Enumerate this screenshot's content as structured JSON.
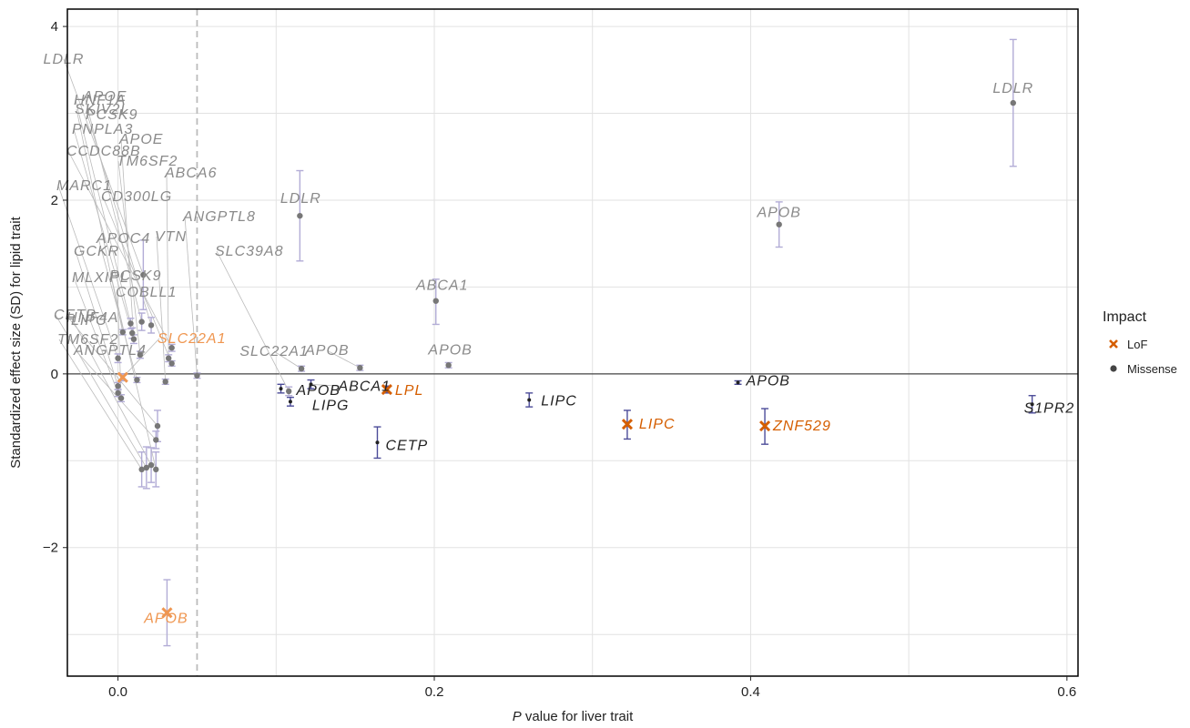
{
  "chart_data": {
    "type": "scatter",
    "xlabel_italic": "P",
    "xlabel_rest": " value for liver trait",
    "ylabel": "Standardized effect size (SD) for lipid trait",
    "xlim": [
      -0.032,
      0.607
    ],
    "ylim": [
      -3.48,
      4.2
    ],
    "x_ticks": [
      0.0,
      0.2,
      0.4,
      0.6
    ],
    "x_tick_labels": [
      "0.0",
      "0.2",
      "0.4",
      "0.6"
    ],
    "y_ticks": [
      -2,
      0,
      2,
      4
    ],
    "y_tick_labels": [
      "−2",
      "0",
      "2",
      "4"
    ],
    "threshold_x": 0.05,
    "zero_line_y": 0,
    "legend": {
      "title": "Impact",
      "position": "right",
      "entries": [
        {
          "label": "LoF",
          "marker": "x",
          "color": "#d55e00"
        },
        {
          "label": "Missense",
          "marker": "circle",
          "color": "#444444"
        }
      ]
    },
    "colors": {
      "lof_dark": "#d55e00",
      "lof_light": "#ef9650",
      "missense_dark": "#222222",
      "missense_light": "#8a8a8a",
      "errorbar_dark": "#4c4c99",
      "errorbar_light": "#b2acd6",
      "leader": "#bbbbbb",
      "grid": "#e2e2e2",
      "threshold": "#bbbbbb"
    },
    "points": [
      {
        "gene": "LDLR",
        "x": 0.566,
        "y": 3.12,
        "lo": 2.39,
        "hi": 3.85,
        "impact": "Missense",
        "shade": "light"
      },
      {
        "gene": "APOB",
        "x": 0.418,
        "y": 1.72,
        "lo": 1.46,
        "hi": 1.98,
        "impact": "Missense",
        "shade": "light"
      },
      {
        "gene": "LDLR",
        "x": 0.115,
        "y": 1.82,
        "lo": 1.3,
        "hi": 2.34,
        "impact": "Missense",
        "shade": "light"
      },
      {
        "gene": "ABCA1",
        "x": 0.201,
        "y": 0.84,
        "lo": 0.57,
        "hi": 1.09,
        "impact": "Missense",
        "shade": "light"
      },
      {
        "gene": "APOB",
        "x": 0.209,
        "y": 0.1,
        "lo": 0.07,
        "hi": 0.13,
        "impact": "Missense",
        "shade": "light"
      },
      {
        "gene": "APOB",
        "x": 0.153,
        "y": 0.07,
        "lo": 0.04,
        "hi": 0.1,
        "impact": "Missense",
        "shade": "light"
      },
      {
        "gene": "SLC22A1",
        "x": 0.116,
        "y": 0.06,
        "lo": 0.03,
        "hi": 0.09,
        "impact": "Missense",
        "shade": "light"
      },
      {
        "gene": "LDLR",
        "x": 0.016,
        "y": 1.14,
        "lo": 0.74,
        "hi": 1.54,
        "impact": "Missense",
        "shade": "light"
      },
      {
        "gene": "HNF1A",
        "x": 0.008,
        "y": 0.58,
        "lo": 0.52,
        "hi": 0.64,
        "impact": "Missense",
        "shade": "light"
      },
      {
        "gene": "APOE",
        "x": 0.015,
        "y": 0.6,
        "lo": 0.5,
        "hi": 0.7,
        "impact": "Missense",
        "shade": "light"
      },
      {
        "gene": "SKIV2L",
        "x": 0.003,
        "y": 0.48,
        "lo": 0.45,
        "hi": 0.51,
        "impact": "Missense",
        "shade": "light"
      },
      {
        "gene": "PCSK9",
        "x": 0.021,
        "y": 0.56,
        "lo": 0.47,
        "hi": 0.65,
        "impact": "Missense",
        "shade": "light"
      },
      {
        "gene": "PNPLA3",
        "x": 0.009,
        "y": 0.47,
        "lo": 0.41,
        "hi": 0.53,
        "impact": "Missense",
        "shade": "light"
      },
      {
        "gene": "APOE",
        "x": 0.01,
        "y": 0.4,
        "lo": 0.35,
        "hi": 0.45,
        "impact": "Missense",
        "shade": "light"
      },
      {
        "gene": "CCDC88B",
        "x": 0.034,
        "y": 0.3,
        "lo": 0.26,
        "hi": 0.34,
        "impact": "Missense",
        "shade": "light"
      },
      {
        "gene": "TM6SF2",
        "x": 0.014,
        "y": 0.22,
        "lo": 0.18,
        "hi": 0.26,
        "impact": "Missense",
        "shade": "light"
      },
      {
        "gene": "ABCA6",
        "x": 0.032,
        "y": 0.18,
        "lo": 0.14,
        "hi": 0.22,
        "impact": "Missense",
        "shade": "light"
      },
      {
        "gene": "MARC1",
        "x": 0.0,
        "y": 0.18,
        "lo": 0.13,
        "hi": 0.23,
        "impact": "Missense",
        "shade": "light"
      },
      {
        "gene": "CD300LG",
        "x": 0.034,
        "y": 0.12,
        "lo": 0.09,
        "hi": 0.15,
        "impact": "Missense",
        "shade": "light"
      },
      {
        "gene": "ANGPTL8",
        "x": 0.05,
        "y": -0.02,
        "lo": -0.05,
        "hi": 0.01,
        "impact": "Missense",
        "shade": "light"
      },
      {
        "gene": "APOC4",
        "x": 0.012,
        "y": -0.07,
        "lo": -0.1,
        "hi": -0.04,
        "impact": "Missense",
        "shade": "light"
      },
      {
        "gene": "VTN",
        "x": 0.03,
        "y": -0.09,
        "lo": -0.12,
        "hi": -0.06,
        "impact": "Missense",
        "shade": "light"
      },
      {
        "gene": "SLC39A8",
        "x": 0.108,
        "y": -0.2,
        "lo": -0.25,
        "hi": -0.15,
        "impact": "Missense",
        "shade": "light"
      },
      {
        "gene": "GCKR",
        "x": 0.0,
        "y": -0.14,
        "lo": -0.18,
        "hi": -0.1,
        "impact": "Missense",
        "shade": "light"
      },
      {
        "gene": "MLXIPL",
        "x": 0.0,
        "y": -0.22,
        "lo": -0.26,
        "hi": -0.18,
        "impact": "Missense",
        "shade": "light"
      },
      {
        "gene": "COBLL1",
        "x": 0.002,
        "y": -0.28,
        "lo": -0.32,
        "hi": -0.24,
        "impact": "Missense",
        "shade": "light"
      },
      {
        "gene": "HNF4A",
        "x": 0.025,
        "y": -0.6,
        "lo": -0.78,
        "hi": -0.42,
        "impact": "Missense",
        "shade": "light"
      },
      {
        "gene": "ANGPTL4",
        "x": 0.024,
        "y": -0.76,
        "lo": -0.86,
        "hi": -0.66,
        "impact": "Missense",
        "shade": "light"
      },
      {
        "gene": "TM6SF2",
        "x": 0.015,
        "y": -1.1,
        "lo": -1.3,
        "hi": -0.9,
        "impact": "Missense",
        "shade": "light"
      },
      {
        "gene": "LIPC",
        "x": 0.021,
        "y": -1.05,
        "lo": -1.25,
        "hi": -0.85,
        "impact": "Missense",
        "shade": "light"
      },
      {
        "gene": "CETP",
        "x": 0.018,
        "y": -1.08,
        "lo": -1.32,
        "hi": -0.84,
        "impact": "Missense",
        "shade": "light"
      },
      {
        "gene": "PCSK9",
        "x": 0.024,
        "y": -1.1,
        "lo": -1.3,
        "hi": -0.9,
        "impact": "Missense",
        "shade": "light"
      },
      {
        "gene": "SLC22A1",
        "x": 0.003,
        "y": -0.04,
        "lo": -0.08,
        "hi": 0.0,
        "impact": "LoF",
        "shade": "light"
      },
      {
        "gene": "APOB",
        "x": 0.031,
        "y": -2.75,
        "lo": -3.13,
        "hi": -2.37,
        "impact": "LoF",
        "shade": "light"
      },
      {
        "gene": "ABCA1",
        "x": 0.122,
        "y": -0.12,
        "lo": -0.17,
        "hi": -0.07,
        "impact": "Missense",
        "shade": "dark"
      },
      {
        "gene": "APOB",
        "x": 0.103,
        "y": -0.17,
        "lo": -0.22,
        "hi": -0.12,
        "impact": "Missense",
        "shade": "dark"
      },
      {
        "gene": "LIPG",
        "x": 0.109,
        "y": -0.32,
        "lo": -0.37,
        "hi": -0.27,
        "impact": "Missense",
        "shade": "dark"
      },
      {
        "gene": "CETP",
        "x": 0.164,
        "y": -0.79,
        "lo": -0.97,
        "hi": -0.61,
        "impact": "Missense",
        "shade": "dark"
      },
      {
        "gene": "LIPC",
        "x": 0.26,
        "y": -0.3,
        "lo": -0.38,
        "hi": -0.22,
        "impact": "Missense",
        "shade": "dark"
      },
      {
        "gene": "APOB",
        "x": 0.392,
        "y": -0.1,
        "lo": -0.12,
        "hi": -0.08,
        "impact": "Missense",
        "shade": "dark"
      },
      {
        "gene": "S1PR2",
        "x": 0.578,
        "y": -0.35,
        "lo": -0.45,
        "hi": -0.25,
        "impact": "Missense",
        "shade": "dark"
      },
      {
        "gene": "LPL",
        "x": 0.17,
        "y": -0.18,
        "lo": -0.22,
        "hi": -0.14,
        "impact": "LoF",
        "shade": "dark"
      },
      {
        "gene": "LIPC",
        "x": 0.322,
        "y": -0.58,
        "lo": -0.75,
        "hi": -0.42,
        "impact": "LoF",
        "shade": "dark"
      },
      {
        "gene": "ZNF529",
        "x": 0.409,
        "y": -0.6,
        "lo": -0.81,
        "hi": -0.4,
        "impact": "LoF",
        "shade": "dark"
      }
    ]
  }
}
